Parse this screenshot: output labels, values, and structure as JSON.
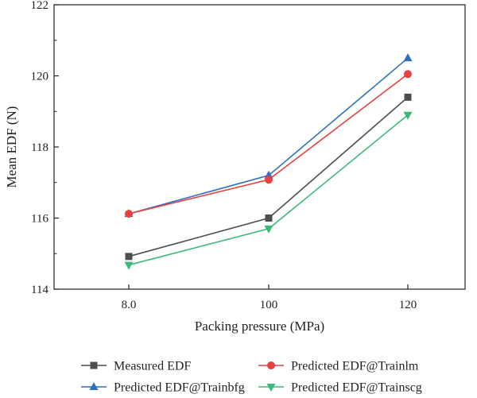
{
  "chart_data": {
    "type": "line",
    "title": "",
    "xlabel": "Packing pressure (MPa)",
    "ylabel": "Mean EDF (N)",
    "categories": [
      "8.0",
      "100",
      "120"
    ],
    "ylim": [
      114,
      122
    ],
    "yticks": [
      "114",
      "116",
      "118",
      "120",
      "122"
    ],
    "grid": false,
    "legend_position": "bottom",
    "series": [
      {
        "name": "Measured EDF",
        "marker": "square",
        "color": "#4d4d4d",
        "values": [
          114.92,
          116.0,
          119.4
        ]
      },
      {
        "name": "Predicted EDF@Trainbfg",
        "marker": "triangle-up",
        "color": "#2f6fc0",
        "values": [
          116.12,
          117.2,
          120.5
        ]
      },
      {
        "name": "Predicted EDF@Trainlm",
        "marker": "circle",
        "color": "#e8413f",
        "values": [
          116.12,
          117.08,
          120.05
        ]
      },
      {
        "name": "Predicted EDF@Trainscg",
        "marker": "triangle-down",
        "color": "#3cb878",
        "values": [
          114.68,
          115.7,
          118.9
        ]
      }
    ]
  }
}
